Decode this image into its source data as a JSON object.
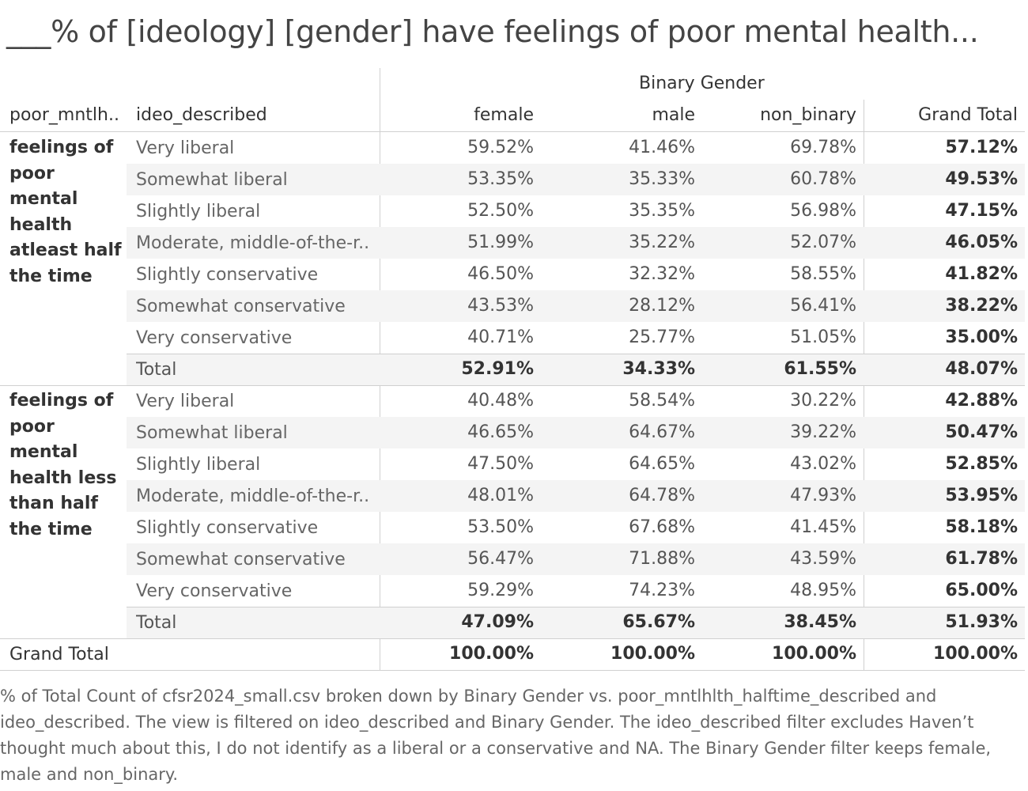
{
  "title": "___% of [ideology] [gender] have feelings of poor mental health...",
  "column_group_header": "Binary Gender",
  "row_headers": [
    "poor_mntlh..",
    "ideo_described"
  ],
  "columns": [
    "female",
    "male",
    "non_binary",
    "Grand Total"
  ],
  "groups": [
    {
      "label": "feelings of poor mental health atleast half the time",
      "rows": [
        {
          "label": "Very liberal",
          "values": [
            "59.52%",
            "41.46%",
            "69.78%",
            "57.12%"
          ]
        },
        {
          "label": "Somewhat liberal",
          "values": [
            "53.35%",
            "35.33%",
            "60.78%",
            "49.53%"
          ]
        },
        {
          "label": "Slightly liberal",
          "values": [
            "52.50%",
            "35.35%",
            "56.98%",
            "47.15%"
          ]
        },
        {
          "label": "Moderate, middle-of-the-r..",
          "values": [
            "51.99%",
            "35.22%",
            "52.07%",
            "46.05%"
          ]
        },
        {
          "label": "Slightly conservative",
          "values": [
            "46.50%",
            "32.32%",
            "58.55%",
            "41.82%"
          ]
        },
        {
          "label": "Somewhat conservative",
          "values": [
            "43.53%",
            "28.12%",
            "56.41%",
            "38.22%"
          ]
        },
        {
          "label": "Very conservative",
          "values": [
            "40.71%",
            "25.77%",
            "51.05%",
            "35.00%"
          ]
        }
      ],
      "total": {
        "label": "Total",
        "values": [
          "52.91%",
          "34.33%",
          "61.55%",
          "48.07%"
        ]
      }
    },
    {
      "label": "feelings of poor mental health less than half the time",
      "rows": [
        {
          "label": "Very liberal",
          "values": [
            "40.48%",
            "58.54%",
            "30.22%",
            "42.88%"
          ]
        },
        {
          "label": "Somewhat liberal",
          "values": [
            "46.65%",
            "64.67%",
            "39.22%",
            "50.47%"
          ]
        },
        {
          "label": "Slightly liberal",
          "values": [
            "47.50%",
            "64.65%",
            "43.02%",
            "52.85%"
          ]
        },
        {
          "label": "Moderate, middle-of-the-r..",
          "values": [
            "48.01%",
            "64.78%",
            "47.93%",
            "53.95%"
          ]
        },
        {
          "label": "Slightly conservative",
          "values": [
            "53.50%",
            "67.68%",
            "41.45%",
            "58.18%"
          ]
        },
        {
          "label": "Somewhat conservative",
          "values": [
            "56.47%",
            "71.88%",
            "43.59%",
            "61.78%"
          ]
        },
        {
          "label": "Very conservative",
          "values": [
            "59.29%",
            "74.23%",
            "48.95%",
            "65.00%"
          ]
        }
      ],
      "total": {
        "label": "Total",
        "values": [
          "47.09%",
          "65.67%",
          "38.45%",
          "51.93%"
        ]
      }
    }
  ],
  "grand_total": {
    "label": "Grand Total",
    "values": [
      "100.00%",
      "100.00%",
      "100.00%",
      "100.00%"
    ]
  },
  "footnote": "% of Total Count of cfsr2024_small.csv broken down by Binary Gender vs. poor_mntlhlth_halftime_described and ideo_described. The view is filtered on ideo_described and Binary Gender. The ideo_described filter excludes Haven’t thought much about this, I do not identify as a liberal or a conservative and NA. The Binary Gender filter keeps female, male and non_binary.",
  "chart_data": {
    "type": "table",
    "title": "___% of [ideology] [gender] have feelings of poor mental health...",
    "column_header": "Binary Gender",
    "columns": [
      "female",
      "male",
      "non_binary",
      "Grand Total"
    ],
    "row_dimensions": [
      "poor_mntlh..",
      "ideo_described"
    ],
    "series": [
      {
        "group": "feelings of poor mental health atleast half the time",
        "categories": [
          "Very liberal",
          "Somewhat liberal",
          "Slightly liberal",
          "Moderate, middle-of-the-r..",
          "Slightly conservative",
          "Somewhat conservative",
          "Very conservative",
          "Total"
        ],
        "female": [
          59.52,
          53.35,
          52.5,
          51.99,
          46.5,
          43.53,
          40.71,
          52.91
        ],
        "male": [
          41.46,
          35.33,
          35.35,
          35.22,
          32.32,
          28.12,
          25.77,
          34.33
        ],
        "non_binary": [
          69.78,
          60.78,
          56.98,
          52.07,
          58.55,
          56.41,
          51.05,
          61.55
        ],
        "grand_total": [
          57.12,
          49.53,
          47.15,
          46.05,
          41.82,
          38.22,
          35.0,
          48.07
        ]
      },
      {
        "group": "feelings of poor mental health less than half the time",
        "categories": [
          "Very liberal",
          "Somewhat liberal",
          "Slightly liberal",
          "Moderate, middle-of-the-r..",
          "Slightly conservative",
          "Somewhat conservative",
          "Very conservative",
          "Total"
        ],
        "female": [
          40.48,
          46.65,
          47.5,
          48.01,
          53.5,
          56.47,
          59.29,
          47.09
        ],
        "male": [
          58.54,
          64.67,
          64.65,
          64.78,
          67.68,
          71.88,
          74.23,
          65.67
        ],
        "non_binary": [
          30.22,
          39.22,
          43.02,
          47.93,
          41.45,
          43.59,
          48.95,
          38.45
        ],
        "grand_total": [
          42.88,
          50.47,
          52.85,
          53.95,
          58.18,
          61.78,
          65.0,
          51.93
        ]
      }
    ],
    "grand_total": [
      100.0,
      100.0,
      100.0,
      100.0
    ]
  }
}
